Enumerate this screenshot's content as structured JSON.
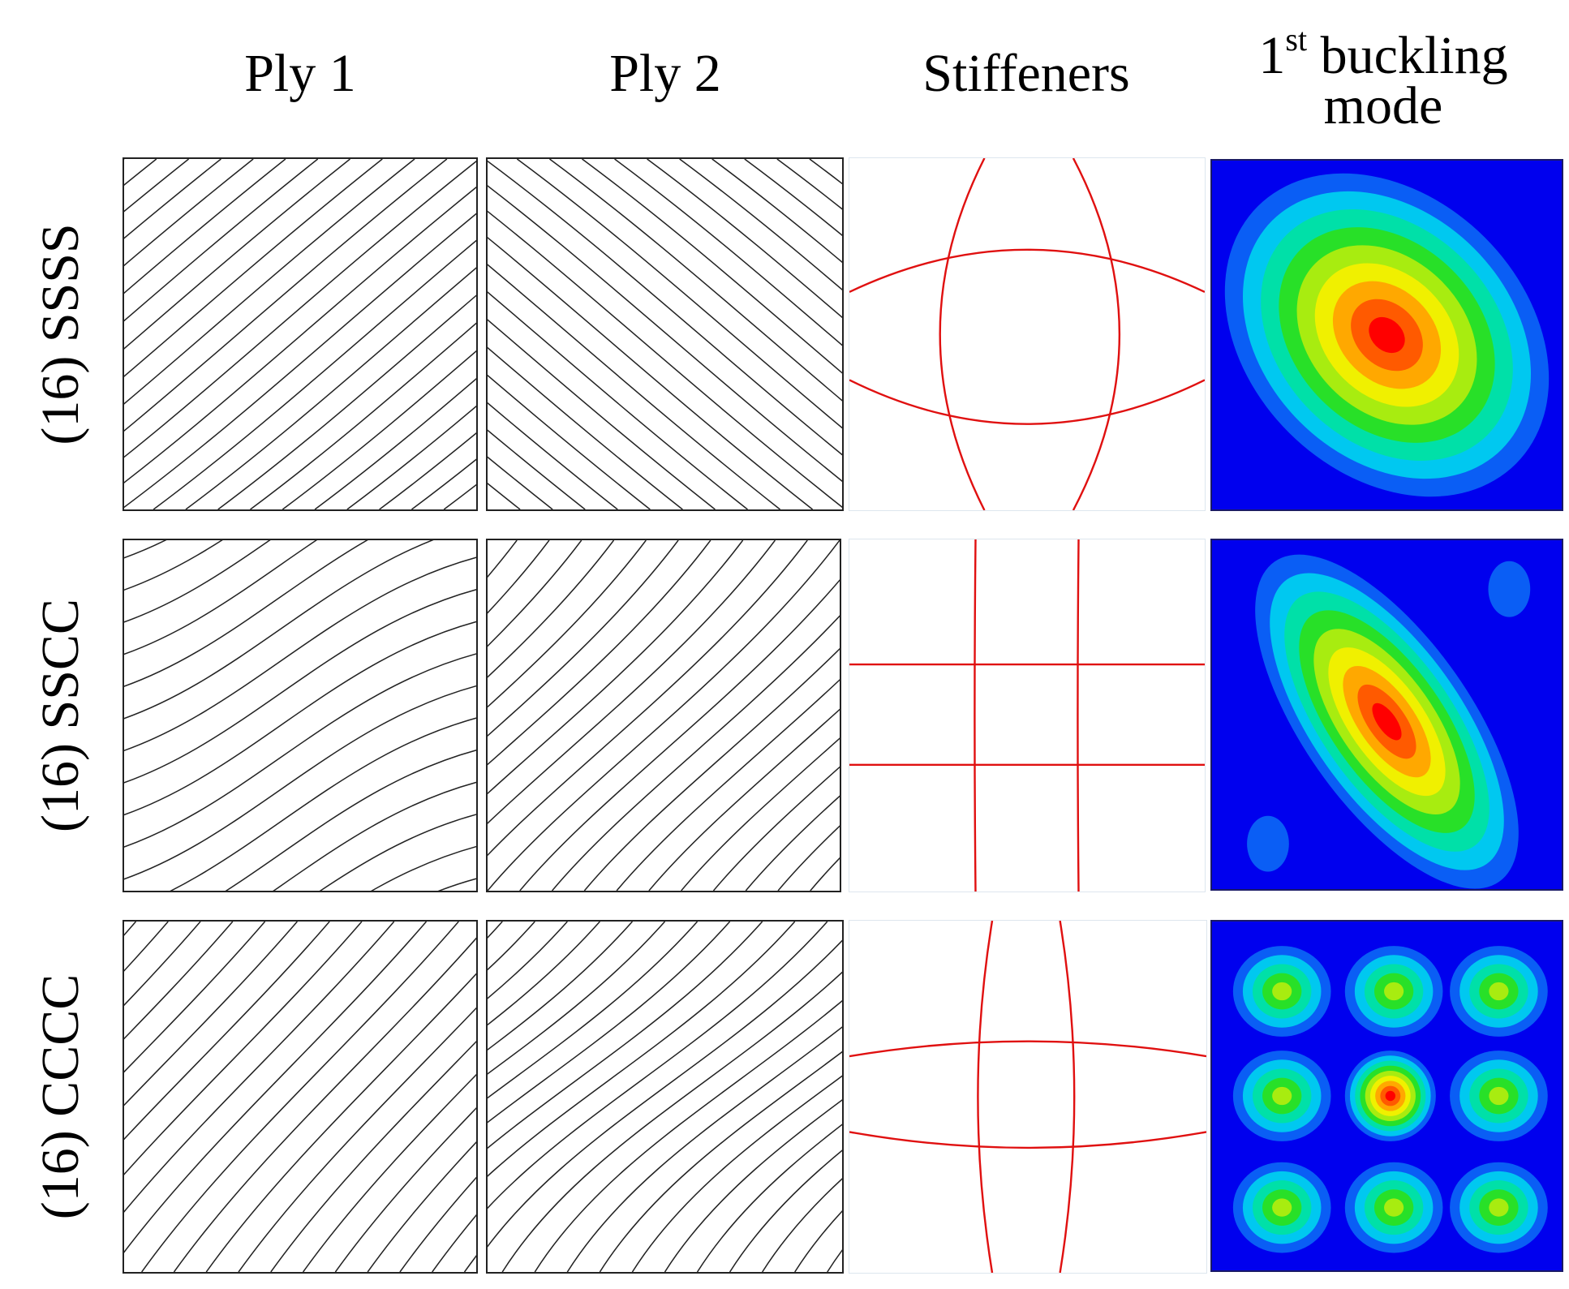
{
  "headers": {
    "ply1": "Ply 1",
    "ply2": "Ply 2",
    "stiffeners": "Stiffeners",
    "mode_line1_num": "1",
    "mode_line1_sup": "st",
    "mode_line1_rest": " buckling",
    "mode_line2": "mode"
  },
  "rows": [
    {
      "label": "(16) SSSS"
    },
    {
      "label": "(16) SSCC"
    },
    {
      "label": "(16) CCCC"
    }
  ],
  "colors": {
    "fiber_line": "#222222",
    "stiffener": "#e01010",
    "mode_scale": [
      "#0000ee",
      "#0a5ef5",
      "#00c8f0",
      "#00e0a8",
      "#28e028",
      "#a8ec10",
      "#f0f000",
      "#ffa800",
      "#ff5a00",
      "#ff0000"
    ]
  }
}
